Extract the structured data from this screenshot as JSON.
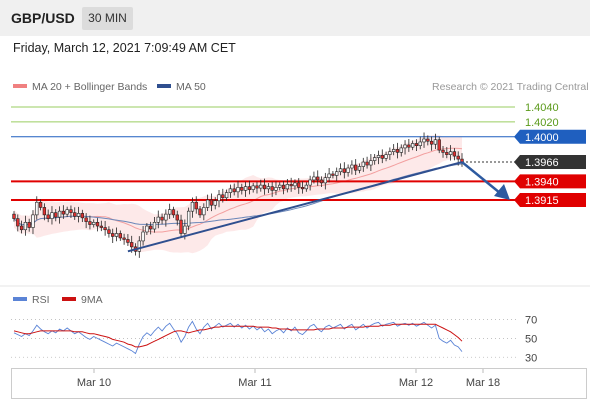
{
  "header": {
    "symbol": "GBP/USD",
    "timeframe": "30 MIN"
  },
  "datetime": "Friday, March 12, 2021 7:09:49 AM CET",
  "legend": {
    "main": [
      {
        "name": "MA 20 + Bollinger Bands",
        "color": "#f08080"
      },
      {
        "name": "MA 50",
        "color": "#2f4f8f"
      }
    ],
    "rsi": [
      {
        "name": "RSI",
        "color": "#5b84d6"
      },
      {
        "name": "9MA",
        "color": "#cc1111"
      }
    ]
  },
  "credit": "Research © 2021 Trading Central",
  "colors": {
    "bullish": "#f8f8f8",
    "bearish": "#e03030",
    "resistance": "#1f5fbf",
    "support": "#e00000",
    "target_line": "#9acd60",
    "trend": "#2f4f8f",
    "price_badge": "#333333"
  },
  "chart_data": [
    {
      "type": "candlestick",
      "symbol": "GBP/USD",
      "x_ticks": [
        "Mar 10",
        "Mar 11",
        "Mar 12",
        "Mar 18"
      ],
      "ylim": [
        1.38,
        1.406
      ],
      "price_levels": [
        {
          "value": 1.404,
          "label": "1.4040",
          "kind": "target"
        },
        {
          "value": 1.402,
          "label": "1.4020",
          "kind": "target"
        },
        {
          "value": 1.4,
          "label": "1.4000",
          "kind": "resistance"
        },
        {
          "value": 1.3966,
          "label": "1.3966",
          "kind": "last"
        },
        {
          "value": 1.394,
          "label": "1.3940",
          "kind": "support"
        },
        {
          "value": 1.3915,
          "label": "1.3915",
          "kind": "support"
        }
      ],
      "closes": [
        1.389,
        1.388,
        1.3875,
        1.3885,
        1.3878,
        1.3895,
        1.3912,
        1.3905,
        1.3895,
        1.389,
        1.3898,
        1.3892,
        1.39,
        1.3896,
        1.3902,
        1.3898,
        1.3893,
        1.3897,
        1.3891,
        1.3886,
        1.3882,
        1.3885,
        1.388,
        1.3878,
        1.3875,
        1.387,
        1.3866,
        1.387,
        1.3864,
        1.3862,
        1.3858,
        1.3852,
        1.3846,
        1.386,
        1.3872,
        1.388,
        1.3876,
        1.3885,
        1.3892,
        1.3888,
        1.3896,
        1.3902,
        1.3895,
        1.3888,
        1.387,
        1.388,
        1.39,
        1.3912,
        1.3903,
        1.3895,
        1.3905,
        1.3915,
        1.3908,
        1.3914,
        1.3922,
        1.3918,
        1.3925,
        1.393,
        1.3926,
        1.3932,
        1.3928,
        1.3933,
        1.3929,
        1.3934,
        1.3931,
        1.3935,
        1.393,
        1.3933,
        1.3928,
        1.3932,
        1.3935,
        1.393,
        1.3936,
        1.3934,
        1.3938,
        1.3932,
        1.393,
        1.3935,
        1.3942,
        1.3946,
        1.3942,
        1.3938,
        1.3945,
        1.395,
        1.3948,
        1.3953,
        1.3957,
        1.3952,
        1.3958,
        1.3962,
        1.3955,
        1.396,
        1.3966,
        1.3962,
        1.3968,
        1.3972,
        1.3975,
        1.3971,
        1.3976,
        1.398,
        1.3983,
        1.3979,
        1.3985,
        1.3989,
        1.3986,
        1.3991,
        1.3988,
        1.3993,
        1.3997,
        1.3994,
        1.399,
        1.3996,
        1.3982,
        1.3979,
        1.3976,
        1.398,
        1.3974,
        1.397,
        1.3966
      ],
      "trendline": {
        "from_index": 30,
        "from_price": 1.3846,
        "to_index": 118,
        "to_price": 1.3966
      },
      "forecast": {
        "from_price": 1.3966,
        "to_price": 1.3915
      }
    },
    {
      "type": "line",
      "title": "RSI",
      "y_ticks": [
        70,
        50,
        30
      ],
      "ylim": [
        25,
        78
      ],
      "series": [
        {
          "name": "RSI",
          "values": [
            56,
            54,
            52,
            55,
            53,
            58,
            64,
            60,
            57,
            55,
            58,
            56,
            60,
            58,
            61,
            58,
            55,
            57,
            54,
            51,
            49,
            52,
            50,
            48,
            46,
            44,
            42,
            45,
            43,
            41,
            39,
            37,
            34,
            44,
            52,
            56,
            53,
            58,
            62,
            58,
            63,
            66,
            60,
            55,
            46,
            52,
            62,
            68,
            60,
            55,
            62,
            66,
            60,
            63,
            66,
            62,
            64,
            66,
            62,
            65,
            61,
            64,
            60,
            63,
            59,
            62,
            57,
            60,
            55,
            58,
            60,
            56,
            61,
            58,
            62,
            56,
            54,
            58,
            63,
            65,
            60,
            57,
            62,
            64,
            61,
            63,
            65,
            60,
            63,
            65,
            59,
            62,
            65,
            61,
            64,
            66,
            67,
            63,
            65,
            66,
            67,
            63,
            65,
            66,
            64,
            66,
            63,
            65,
            67,
            64,
            61,
            64,
            50,
            47,
            45,
            48,
            43,
            41,
            36
          ]
        },
        {
          "name": "9MA",
          "values": [
            58,
            57,
            56,
            55,
            55,
            56,
            57,
            58,
            58,
            58,
            58,
            58,
            58,
            58,
            58,
            58,
            57,
            57,
            57,
            56,
            55,
            55,
            54,
            53,
            52,
            51,
            49,
            48,
            47,
            46,
            44,
            43,
            41,
            41,
            42,
            43,
            45,
            47,
            49,
            51,
            53,
            55,
            57,
            58,
            58,
            57,
            56,
            57,
            58,
            59,
            59,
            60,
            61,
            62,
            62,
            63,
            63,
            63,
            63,
            63,
            63,
            63,
            63,
            63,
            62,
            62,
            62,
            62,
            61,
            61,
            60,
            60,
            60,
            59,
            59,
            59,
            59,
            59,
            59,
            59,
            60,
            60,
            60,
            60,
            61,
            61,
            61,
            61,
            62,
            62,
            62,
            62,
            62,
            63,
            63,
            63,
            63,
            64,
            64,
            64,
            65,
            65,
            65,
            65,
            65,
            65,
            65,
            65,
            65,
            65,
            65,
            65,
            63,
            61,
            59,
            57,
            54,
            51,
            47
          ]
        }
      ]
    }
  ]
}
